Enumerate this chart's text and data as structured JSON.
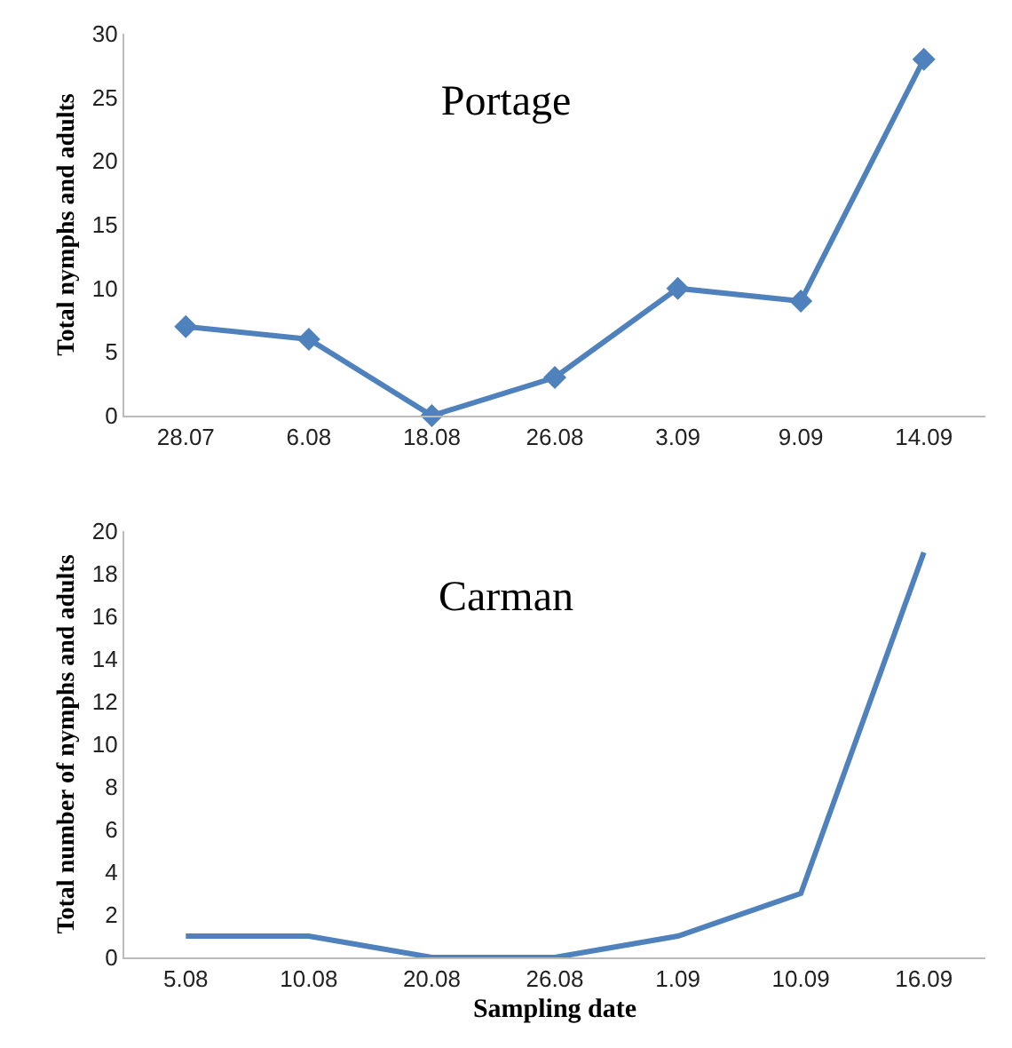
{
  "chart_data": [
    {
      "type": "line",
      "title": "Portage",
      "ylabel": "Total nymphs and adults",
      "categories": [
        "28.07",
        "6.08",
        "18.08",
        "26.08",
        "3.09",
        "9.09",
        "14.09"
      ],
      "series": [
        {
          "color": "#4f81bd",
          "values": [
            7,
            6,
            0,
            3,
            10,
            9,
            28
          ]
        }
      ],
      "ylim": [
        0,
        30
      ],
      "yticks": [
        0,
        5,
        10,
        15,
        20,
        25,
        30
      ],
      "grid": false,
      "marker": "diamond",
      "line_style": "solid"
    },
    {
      "type": "line",
      "title": "Carman",
      "xlabel": "Sampling date",
      "ylabel": "Total number of nymphs and adults",
      "categories": [
        "5.08",
        "10.08",
        "20.08",
        "26.08",
        "1.09",
        "10.09",
        "16.09"
      ],
      "series": [
        {
          "color": "#4f81bd",
          "values": [
            1,
            1,
            0,
            0,
            1,
            3,
            19
          ]
        }
      ],
      "ylim": [
        0,
        20
      ],
      "yticks": [
        0,
        2,
        4,
        6,
        8,
        10,
        12,
        14,
        16,
        18,
        20
      ],
      "grid": false,
      "marker": "none",
      "line_style": "solid"
    }
  ]
}
